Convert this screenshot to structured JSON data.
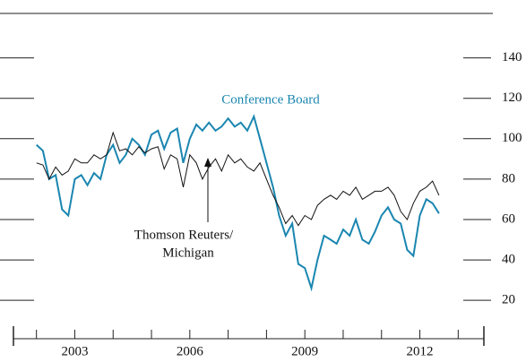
{
  "chart_data": {
    "type": "line",
    "annotations": [
      "Conference Board",
      "Thomson Reuters/",
      "Michigan"
    ],
    "x": [
      2002.0,
      2002.17,
      2002.33,
      2002.5,
      2002.67,
      2002.83,
      2003.0,
      2003.17,
      2003.33,
      2003.5,
      2003.67,
      2003.83,
      2004.0,
      2004.17,
      2004.33,
      2004.5,
      2004.67,
      2004.83,
      2005.0,
      2005.17,
      2005.33,
      2005.5,
      2005.67,
      2005.83,
      2006.0,
      2006.17,
      2006.33,
      2006.5,
      2006.67,
      2006.83,
      2007.0,
      2007.17,
      2007.33,
      2007.5,
      2007.67,
      2007.83,
      2008.0,
      2008.17,
      2008.33,
      2008.5,
      2008.67,
      2008.83,
      2009.0,
      2009.17,
      2009.33,
      2009.5,
      2009.67,
      2009.83,
      2010.0,
      2010.17,
      2010.33,
      2010.5,
      2010.67,
      2010.83,
      2011.0,
      2011.17,
      2011.33,
      2011.5,
      2011.67,
      2011.83,
      2012.0,
      2012.17,
      2012.33,
      2012.5
    ],
    "series": [
      {
        "name": "Conference Board",
        "color": "#1a86b0",
        "values": [
          97,
          94,
          80,
          82,
          65,
          62,
          80,
          82,
          77,
          83,
          80,
          92,
          97,
          88,
          92,
          100,
          97,
          92,
          102,
          104,
          95,
          103,
          105,
          88,
          100,
          107,
          104,
          108,
          104,
          106,
          110,
          106,
          108,
          104,
          111,
          100,
          88,
          76,
          62,
          52,
          58,
          38,
          36,
          26,
          40,
          52,
          50,
          48,
          55,
          52,
          60,
          50,
          48,
          54,
          62,
          66,
          60,
          58,
          45,
          42,
          62,
          70,
          68,
          63
        ]
      },
      {
        "name": "Thomson Reuters/ Michigan",
        "color": "#111111",
        "values": [
          88,
          87,
          80,
          86,
          82,
          84,
          90,
          88,
          88,
          92,
          90,
          92,
          103,
          94,
          95,
          92,
          96,
          93,
          95,
          96,
          85,
          92,
          90,
          76,
          92,
          88,
          80,
          86,
          90,
          84,
          92,
          88,
          90,
          86,
          84,
          88,
          80,
          72,
          66,
          58,
          62,
          57,
          62,
          60,
          67,
          70,
          72,
          70,
          74,
          72,
          76,
          70,
          72,
          74,
          74,
          76,
          72,
          64,
          60,
          68,
          74,
          76,
          79,
          72
        ]
      }
    ],
    "xlim": [
      2001.4,
      2013.67
    ],
    "xticks": [
      2003,
      2006,
      2009,
      2012
    ],
    "ylim": [
      1,
      162
    ],
    "yticks": [
      20,
      40,
      60,
      80,
      100,
      120,
      140
    ]
  }
}
